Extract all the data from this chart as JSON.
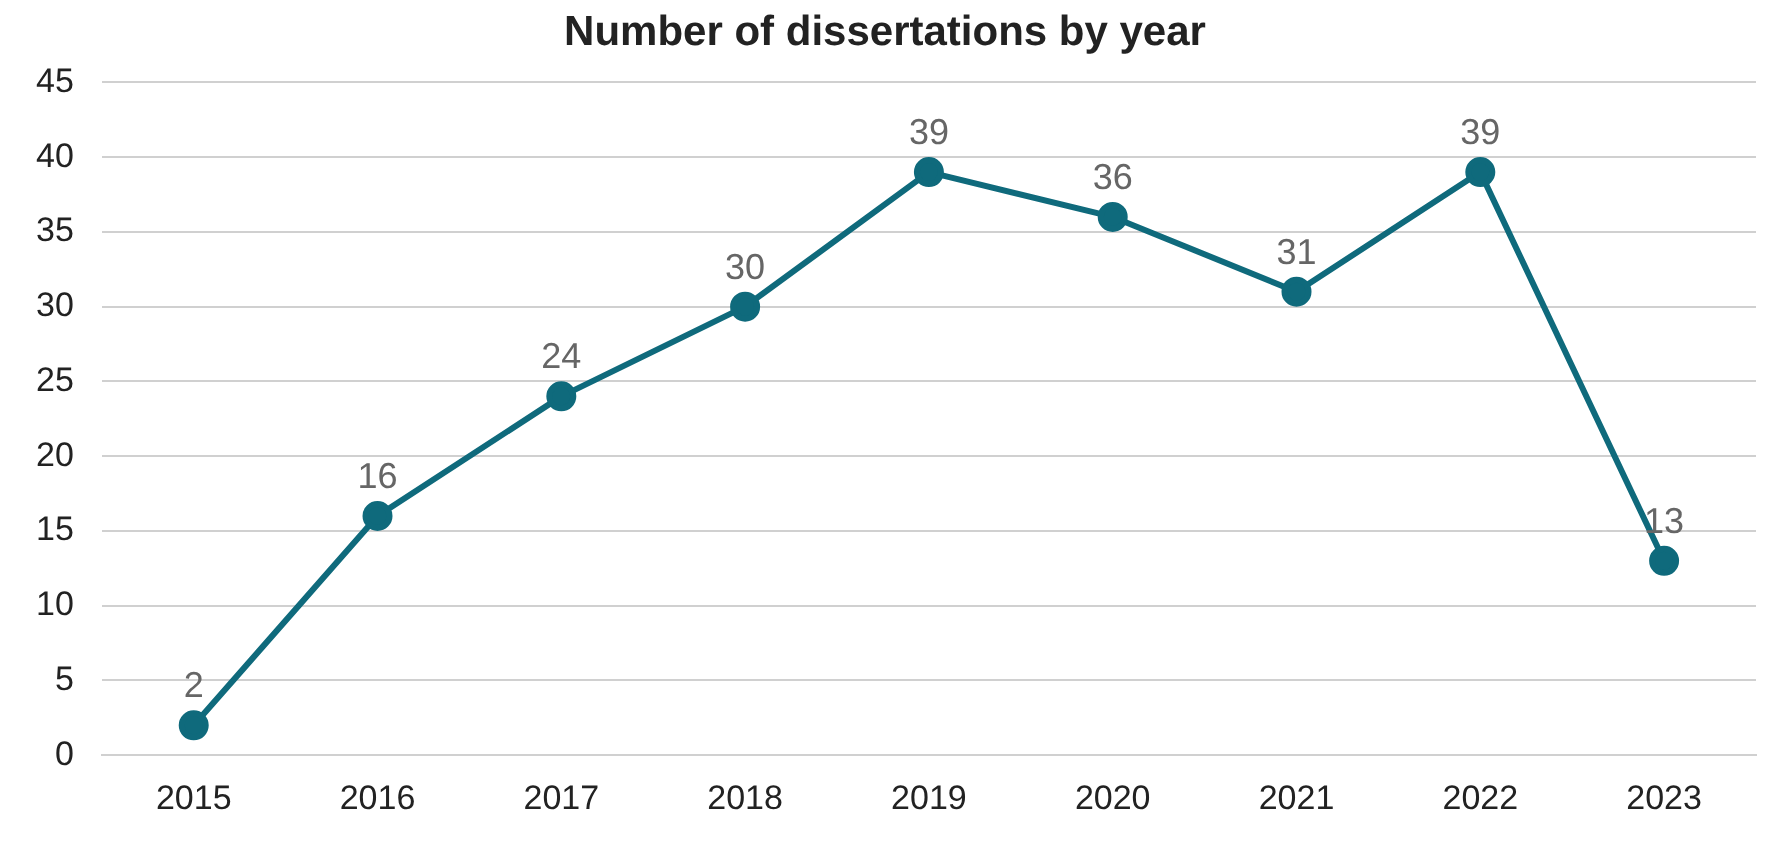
{
  "chart_data": {
    "type": "line",
    "title": "Number of dissertations by year",
    "categories": [
      "2015",
      "2016",
      "2017",
      "2018",
      "2019",
      "2020",
      "2021",
      "2022",
      "2023"
    ],
    "series": [
      {
        "color": "#0f6a7c",
        "values": [
          2,
          16,
          24,
          30,
          39,
          36,
          31,
          39,
          13
        ]
      }
    ],
    "ylim": [
      0,
      45
    ],
    "yticks": [
      0,
      5,
      10,
      15,
      20,
      25,
      30,
      35,
      40,
      45
    ],
    "grid": "y",
    "legend": false,
    "marker": "circle",
    "line_style": "solid",
    "data_labels": true
  }
}
